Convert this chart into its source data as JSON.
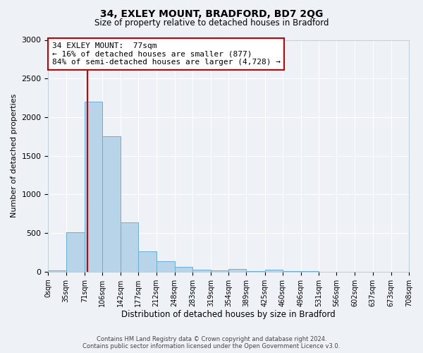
{
  "title": "34, EXLEY MOUNT, BRADFORD, BD7 2QG",
  "subtitle": "Size of property relative to detached houses in Bradford",
  "xlabel": "Distribution of detached houses by size in Bradford",
  "ylabel": "Number of detached properties",
  "bar_color": "#b8d4e8",
  "bar_edge_color": "#6aaed6",
  "background_color": "#eef2f7",
  "grid_color": "#ffffff",
  "annotation_box_color": "#ffffff",
  "annotation_box_edge": "#cc0000",
  "vline_color": "#cc0000",
  "vline_x": 77,
  "annotation_line1": "34 EXLEY MOUNT:  77sqm",
  "annotation_line2": "← 16% of detached houses are smaller (877)",
  "annotation_line3": "84% of semi-detached houses are larger (4,728) →",
  "footer_line1": "Contains HM Land Registry data © Crown copyright and database right 2024.",
  "footer_line2": "Contains public sector information licensed under the Open Government Licence v3.0.",
  "bins": [
    0,
    35,
    71,
    106,
    142,
    177,
    212,
    248,
    283,
    319,
    354,
    389,
    425,
    460,
    496,
    531,
    566,
    602,
    637,
    673,
    708
  ],
  "bin_labels": [
    "0sqm",
    "35sqm",
    "71sqm",
    "106sqm",
    "142sqm",
    "177sqm",
    "212sqm",
    "248sqm",
    "283sqm",
    "319sqm",
    "354sqm",
    "389sqm",
    "425sqm",
    "460sqm",
    "496sqm",
    "531sqm",
    "566sqm",
    "602sqm",
    "637sqm",
    "673sqm",
    "708sqm"
  ],
  "counts": [
    20,
    510,
    2200,
    1750,
    640,
    260,
    135,
    60,
    30,
    15,
    35,
    5,
    25,
    5,
    5,
    0,
    0,
    0,
    0,
    0
  ],
  "ylim": [
    0,
    3000
  ],
  "yticks": [
    0,
    500,
    1000,
    1500,
    2000,
    2500,
    3000
  ]
}
